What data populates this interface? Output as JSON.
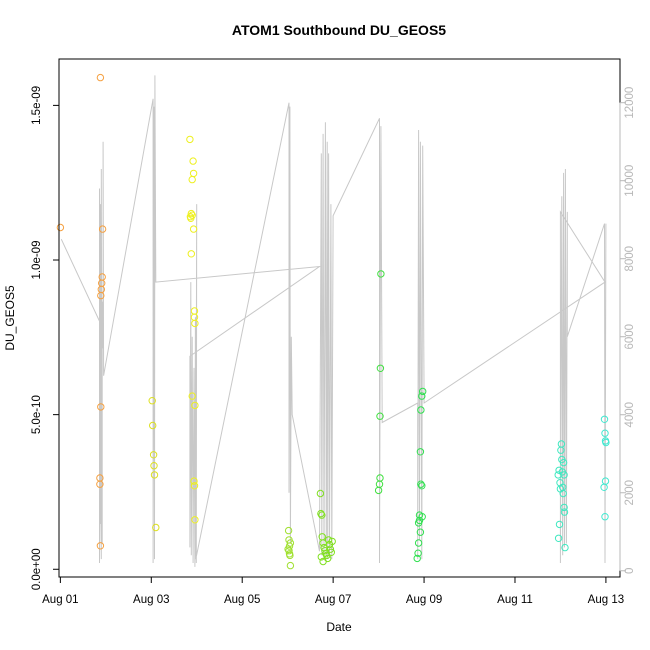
{
  "chart_data": {
    "type": "scatter",
    "title": "ATOM1 Southbound DU_GEOS5",
    "xlabel": "Date",
    "ylabel": "DU_GEOS5",
    "x_ticks": [
      {
        "day": 1,
        "label": "Aug 01"
      },
      {
        "day": 3,
        "label": "Aug 03"
      },
      {
        "day": 5,
        "label": "Aug 05"
      },
      {
        "day": 7,
        "label": "Aug 07"
      },
      {
        "day": 9,
        "label": "Aug 09"
      },
      {
        "day": 11,
        "label": "Aug 11"
      },
      {
        "day": 13,
        "label": "Aug 13"
      }
    ],
    "xlim": [
      0.97,
      13.31
    ],
    "y_left": {
      "ticks": [
        {
          "value": 0,
          "label": "0.0e+00"
        },
        {
          "value": 5e-10,
          "label": "5.0e-10"
        },
        {
          "value": 1e-09,
          "label": "1.0e-09"
        },
        {
          "value": 1.5e-09,
          "label": "1.5e-09"
        }
      ],
      "lim": [
        -2.5e-11,
        1.65e-09
      ]
    },
    "y_right": {
      "ticks": [
        {
          "value": 0,
          "label": "0"
        },
        {
          "value": 2000,
          "label": "2000"
        },
        {
          "value": 4000,
          "label": "4000"
        },
        {
          "value": 6000,
          "label": "6000"
        },
        {
          "value": 8000,
          "label": "8000"
        },
        {
          "value": 10000,
          "label": "10000"
        },
        {
          "value": 12000,
          "label": "12000"
        }
      ],
      "lim": [
        -160,
        13120
      ],
      "color": "#b8b8b8"
    },
    "altitude_line": {
      "color": "#c8c8c8",
      "points": [
        [
          1.02,
          8500
        ],
        [
          1.9,
          6300
        ],
        [
          1.86,
          200
        ],
        [
          1.86,
          9800
        ],
        [
          1.88,
          1200
        ],
        [
          1.88,
          9400
        ],
        [
          1.9,
          300
        ],
        [
          1.9,
          10300
        ],
        [
          1.92,
          700
        ],
        [
          1.92,
          6900
        ],
        [
          1.94,
          5700
        ],
        [
          1.94,
          11000
        ],
        [
          1.95,
          5000
        ],
        [
          3.04,
          12100
        ],
        [
          3.04,
          200
        ],
        [
          3.06,
          11900
        ],
        [
          3.07,
          300
        ],
        [
          3.08,
          12700
        ],
        [
          3.1,
          7400
        ],
        [
          6.7,
          7800
        ],
        [
          3.85,
          5500
        ],
        [
          3.85,
          600
        ],
        [
          3.87,
          7400
        ],
        [
          3.88,
          400
        ],
        [
          3.9,
          6000
        ],
        [
          3.92,
          200
        ],
        [
          3.94,
          5200
        ],
        [
          3.96,
          100
        ],
        [
          3.97,
          6500
        ],
        [
          3.99,
          200
        ],
        [
          4.0,
          9400
        ],
        [
          3.98,
          300
        ],
        [
          6.03,
          12000
        ],
        [
          6.03,
          2000
        ],
        [
          6.05,
          11900
        ],
        [
          6.06,
          700
        ],
        [
          6.08,
          6000
        ],
        [
          6.1,
          4000
        ],
        [
          6.7,
          500
        ],
        [
          6.74,
          10700
        ],
        [
          6.75,
          400
        ],
        [
          6.78,
          11200
        ],
        [
          6.8,
          300
        ],
        [
          6.83,
          11500
        ],
        [
          6.85,
          400
        ],
        [
          6.87,
          11000
        ],
        [
          6.88,
          300
        ],
        [
          6.9,
          10700
        ],
        [
          6.92,
          400
        ],
        [
          6.95,
          9400
        ],
        [
          6.97,
          300
        ],
        [
          7.0,
          9100
        ],
        [
          8.02,
          11600
        ],
        [
          8.02,
          200
        ],
        [
          8.05,
          11400
        ],
        [
          8.08,
          3800
        ],
        [
          8.86,
          4300
        ],
        [
          8.86,
          300
        ],
        [
          8.88,
          11300
        ],
        [
          8.9,
          800
        ],
        [
          8.92,
          11000
        ],
        [
          8.95,
          300
        ],
        [
          8.97,
          10900
        ],
        [
          9.0,
          4300
        ],
        [
          12.98,
          7400
        ],
        [
          12.0,
          9200
        ],
        [
          12.0,
          200
        ],
        [
          12.03,
          9600
        ],
        [
          12.05,
          400
        ],
        [
          12.07,
          10200
        ],
        [
          12.09,
          600
        ],
        [
          12.11,
          10300
        ],
        [
          12.13,
          700
        ],
        [
          12.15,
          9200
        ],
        [
          12.15,
          6000
        ],
        [
          12.97,
          8900
        ],
        [
          12.98,
          200
        ],
        [
          13.0,
          8900
        ]
      ]
    },
    "series": [
      {
        "color": "#f5a040",
        "points": [
          [
            1.0,
            1.105e-09
          ],
          [
            1.88,
            1.59e-09
          ],
          [
            1.87,
            2.95e-10
          ],
          [
            1.87,
            2.75e-10
          ],
          [
            1.88,
            7.6e-11
          ],
          [
            1.89,
            5.25e-10
          ],
          [
            1.89,
            8.85e-10
          ],
          [
            1.9,
            9.05e-10
          ],
          [
            1.91,
            9.25e-10
          ],
          [
            1.92,
            9.45e-10
          ],
          [
            1.93,
            1.1e-09
          ]
        ]
      },
      {
        "color": "#dde020",
        "points": [
          [
            3.02,
            5.45e-10
          ],
          [
            3.03,
            4.65e-10
          ],
          [
            3.05,
            3.7e-10
          ],
          [
            3.06,
            3.35e-10
          ],
          [
            3.07,
            3.05e-10
          ],
          [
            3.1,
            1.35e-10
          ]
        ]
      },
      {
        "color": "#eef020",
        "points": [
          [
            3.85,
            1.39e-09
          ],
          [
            3.86,
            1.14e-09
          ],
          [
            3.87,
            1.135e-09
          ],
          [
            3.88,
            1.15e-09
          ],
          [
            3.88,
            1.02e-09
          ],
          [
            3.9,
            1.26e-09
          ],
          [
            3.9,
            1.145e-09
          ],
          [
            3.92,
            1.32e-09
          ],
          [
            3.93,
            1.28e-09
          ],
          [
            3.93,
            1.1e-09
          ],
          [
            3.95,
            8.35e-10
          ],
          [
            3.95,
            8.15e-10
          ],
          [
            3.96,
            7.95e-10
          ],
          [
            3.9,
            5.6e-10
          ],
          [
            3.96,
            5.3e-10
          ],
          [
            3.94,
            2.85e-10
          ],
          [
            3.95,
            2.7e-10
          ],
          [
            3.96,
            1.6e-10
          ]
        ]
      },
      {
        "color": "#a0e030",
        "points": [
          [
            6.02,
            1.25e-10
          ],
          [
            6.03,
            9.5e-11
          ],
          [
            6.04,
            7.5e-11
          ],
          [
            6.03,
            6e-11
          ],
          [
            6.04,
            5e-11
          ],
          [
            6.05,
            4.5e-11
          ],
          [
            6.06,
            1.2e-11
          ],
          [
            6.06,
            8.5e-11
          ],
          [
            6.01,
            6.5e-11
          ]
        ]
      },
      {
        "color": "#80e020",
        "points": [
          [
            6.72,
            2.45e-10
          ],
          [
            6.73,
            1.8e-10
          ],
          [
            6.75,
            1.75e-10
          ],
          [
            6.76,
            1.05e-10
          ],
          [
            6.78,
            8.5e-11
          ],
          [
            6.8,
            7e-11
          ],
          [
            6.82,
            6e-11
          ],
          [
            6.84,
            5e-11
          ],
          [
            6.86,
            4.5e-11
          ],
          [
            6.88,
            3.5e-11
          ],
          [
            6.9,
            9.5e-11
          ],
          [
            6.92,
            8e-11
          ],
          [
            6.94,
            6.5e-11
          ],
          [
            6.96,
            5.5e-11
          ],
          [
            6.98,
            9e-11
          ],
          [
            6.74,
            4e-11
          ],
          [
            6.78,
            2.5e-11
          ]
        ]
      },
      {
        "color": "#40e040",
        "points": [
          [
            8.0,
            2.55e-10
          ],
          [
            8.02,
            2.75e-10
          ],
          [
            8.03,
            2.95e-10
          ],
          [
            8.03,
            4.95e-10
          ],
          [
            8.04,
            6.5e-10
          ],
          [
            8.05,
            9.55e-10
          ]
        ]
      },
      {
        "color": "#30e050",
        "points": [
          [
            8.85,
            3.5e-11
          ],
          [
            8.87,
            5.2e-11
          ],
          [
            8.88,
            1.5e-10
          ],
          [
            8.9,
            1.58e-10
          ],
          [
            8.9,
            1.75e-10
          ],
          [
            8.92,
            1.2e-10
          ],
          [
            8.93,
            2.75e-10
          ],
          [
            8.95,
            2.7e-10
          ],
          [
            8.92,
            3.8e-10
          ],
          [
            8.93,
            5.15e-10
          ],
          [
            8.95,
            5.6e-10
          ],
          [
            8.97,
            5.75e-10
          ],
          [
            8.96,
            1.7e-10
          ],
          [
            8.88,
            8.5e-11
          ]
        ]
      },
      {
        "color": "#40e8c0",
        "points": [
          [
            11.95,
            3.05e-10
          ],
          [
            11.97,
            3.2e-10
          ],
          [
            11.99,
            2.8e-10
          ],
          [
            12.0,
            2.6e-10
          ],
          [
            12.01,
            3.85e-10
          ],
          [
            12.02,
            4.05e-10
          ],
          [
            12.03,
            3.55e-10
          ],
          [
            12.04,
            3.15e-10
          ],
          [
            12.05,
            2.65e-10
          ],
          [
            12.06,
            2.45e-10
          ],
          [
            12.08,
            3.05e-10
          ],
          [
            12.08,
            2e-10
          ],
          [
            12.09,
            1.85e-10
          ],
          [
            12.1,
            7e-11
          ],
          [
            11.98,
            1.45e-10
          ],
          [
            11.96,
            1e-10
          ],
          [
            12.07,
            3.45e-10
          ]
        ]
      },
      {
        "color": "#40e8d0",
        "points": [
          [
            12.97,
            4.85e-10
          ],
          [
            12.98,
            4.4e-10
          ],
          [
            12.99,
            4.15e-10
          ],
          [
            13.0,
            4.1e-10
          ],
          [
            12.96,
            2.65e-10
          ],
          [
            12.99,
            2.85e-10
          ],
          [
            12.98,
            1.7e-10
          ]
        ]
      }
    ]
  }
}
